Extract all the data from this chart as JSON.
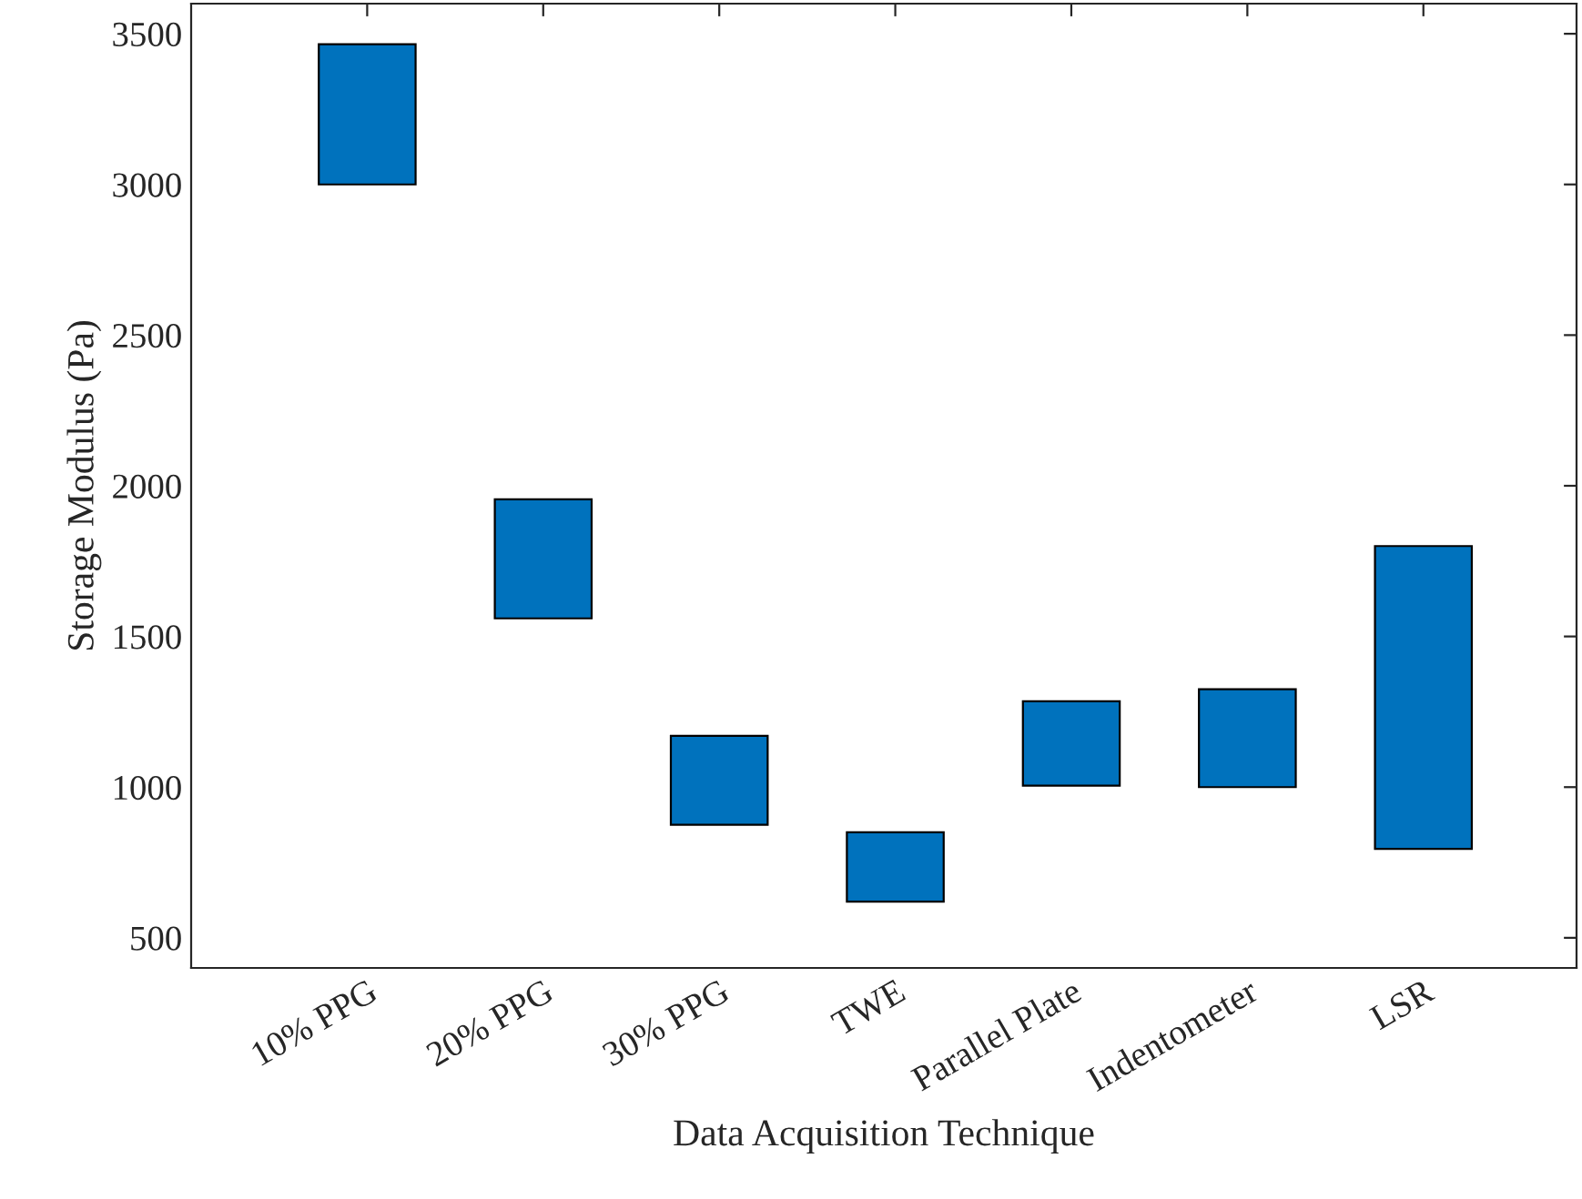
{
  "chart_data": {
    "type": "bar",
    "xlabel": "Data Acquisition Technique",
    "ylabel": "Storage Modulus (Pa)",
    "categories": [
      "10% PPG",
      "20% PPG",
      "30% PPG",
      "TWE",
      "Parallel Plate",
      "Indentometer",
      "LSR"
    ],
    "base": [
      3000,
      1560,
      875,
      620,
      1005,
      1000,
      795
    ],
    "values": [
      465,
      395,
      295,
      230,
      280,
      325,
      1005
    ],
    "color": "#0072bd",
    "ylim": [
      400,
      3600
    ],
    "yticks": [
      500,
      1000,
      1500,
      2000,
      2500,
      3000,
      3500
    ],
    "grid": false,
    "legend": false
  }
}
